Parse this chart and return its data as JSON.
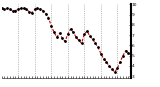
{
  "x_points": [
    0,
    1,
    2,
    3,
    4,
    5,
    6,
    7,
    8,
    9,
    10,
    11,
    12,
    13,
    14,
    15,
    16,
    17,
    18,
    19,
    20,
    21,
    22,
    23,
    24,
    25,
    26,
    27,
    28,
    29,
    30,
    31,
    32,
    33,
    34,
    35,
    36,
    37,
    38,
    39,
    40,
    41,
    42,
    43,
    44,
    45,
    46,
    47
  ],
  "y_points": [
    96,
    95,
    96,
    95,
    94,
    94,
    95,
    96,
    96,
    95,
    93,
    92,
    95,
    96,
    95,
    94,
    91,
    87,
    79,
    73,
    68,
    72,
    67,
    64,
    71,
    76,
    73,
    68,
    65,
    62,
    71,
    74,
    69,
    66,
    62,
    58,
    52,
    47,
    44,
    40,
    37,
    34,
    38,
    44,
    50,
    55,
    53,
    50
  ],
  "line_color": "#cc0000",
  "marker_color": "#000000",
  "bg_color": "#ffffff",
  "grid_color": "#888888",
  "ylim": [
    28,
    100
  ],
  "xlim": [
    0,
    47
  ],
  "ytick_values": [
    30,
    40,
    50,
    60,
    70,
    80,
    90,
    100
  ],
  "ytick_labels": [
    "3",
    "4",
    "5",
    "6",
    "7",
    "8",
    "9",
    "10"
  ],
  "vgrid_positions": [
    6,
    12,
    18,
    24,
    30,
    36,
    42
  ],
  "num_xticks": 48
}
